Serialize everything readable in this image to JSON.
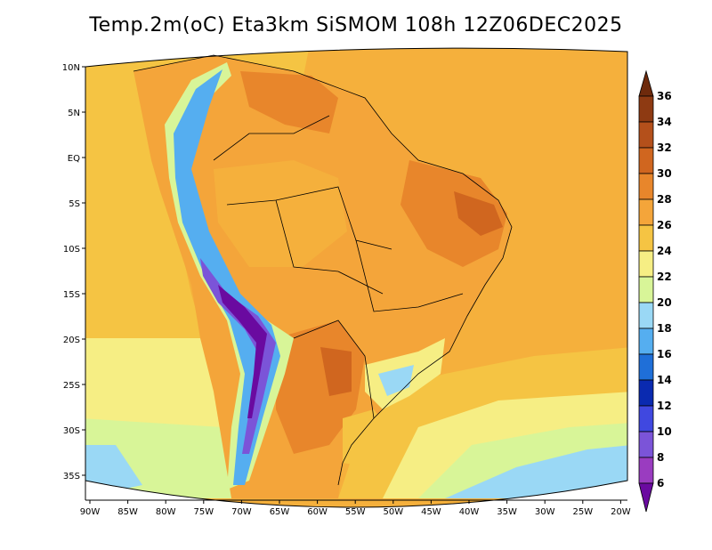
{
  "title": "Temp.2m(oC) Eta3km SiSMOM 108h 12Z06DEC2025",
  "colors": {
    "land_hot": "#f4a53a",
    "ocean_warm": "#f5b03c",
    "frame": "#000000"
  },
  "latitude_labels": [
    "10N",
    "5N",
    "EQ",
    "5S",
    "10S",
    "15S",
    "20S",
    "25S",
    "30S",
    "35S"
  ],
  "longitude_labels": [
    "90W",
    "85W",
    "80W",
    "75W",
    "70W",
    "65W",
    "60W",
    "55W",
    "50W",
    "45W",
    "40W",
    "35W",
    "30W",
    "25W",
    "20W"
  ],
  "colorbar": {
    "labels": [
      "36",
      "34",
      "32",
      "30",
      "28",
      "26",
      "24",
      "22",
      "20",
      "18",
      "16",
      "14",
      "12",
      "10",
      "8",
      "6"
    ],
    "colors": [
      "#6e2a0c",
      "#8e3a12",
      "#b4501b",
      "#d0661f",
      "#e8862b",
      "#f4a53a",
      "#f5c443",
      "#f6ee84",
      "#d8f598",
      "#9ad8f5",
      "#55aef0",
      "#1f6fd8",
      "#0a2ab0",
      "#4048e0",
      "#7b54d8",
      "#9a3cc0",
      "#6a0aa0"
    ]
  }
}
